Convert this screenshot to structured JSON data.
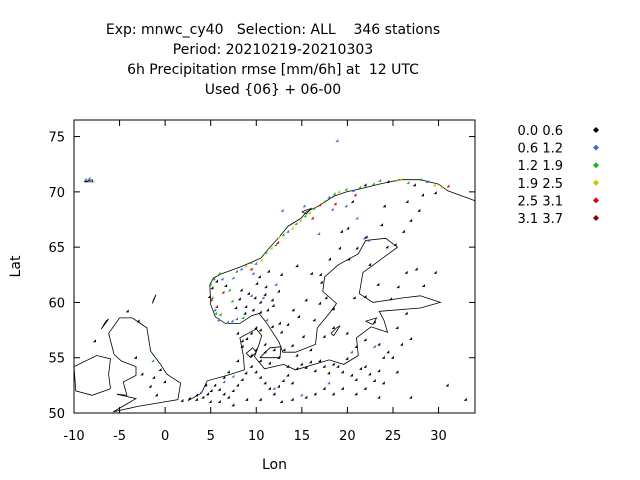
{
  "header": {
    "line1": "Exp: mnwc_cy40   Selection: ALL    346 stations",
    "line2": "Period: 20210219-20210303",
    "line3": "6h Precipitation rmse [mm/6h] at  12 UTC",
    "line4": "Used {06} + 06-00"
  },
  "chart_data": {
    "type": "scatter",
    "xlabel": "Lon",
    "ylabel": "Lat",
    "xlim": [
      -10,
      34
    ],
    "ylim": [
      50,
      76.5
    ],
    "x_ticks": [
      -10,
      -5,
      0,
      5,
      10,
      15,
      20,
      25,
      30
    ],
    "x_tick_labels": [
      "-10",
      "-5",
      "0",
      "5",
      "10",
      "15",
      "20",
      "25",
      "30"
    ],
    "y_ticks": [
      50,
      55,
      60,
      65,
      70,
      75
    ],
    "y_tick_labels": [
      "50",
      "55",
      "60",
      "65",
      "70",
      "75"
    ],
    "background_map": "coastlines",
    "legend_position": "right",
    "classes": [
      {
        "label": "0.0 0.6",
        "color": "#000000"
      },
      {
        "label": "0.6 1.2",
        "color": "#3a6fd8"
      },
      {
        "label": "1.2 1.9",
        "color": "#1fb01f"
      },
      {
        "label": "1.9 2.5",
        "color": "#c8c800"
      },
      {
        "label": "2.5 3.1",
        "color": "#e00000"
      },
      {
        "label": "3.1 3.7",
        "color": "#8b0000"
      }
    ],
    "points": [
      [
        -8.6,
        71.0,
        1
      ],
      [
        -8.2,
        71.1,
        1
      ],
      [
        19.0,
        74.5,
        1
      ],
      [
        -1.2,
        54.6,
        2
      ],
      [
        5.0,
        60.4,
        0
      ],
      [
        5.3,
        60.3,
        2
      ],
      [
        5.6,
        59.2,
        1
      ],
      [
        5.7,
        58.9,
        2
      ],
      [
        6.0,
        58.3,
        1
      ],
      [
        6.2,
        58.8,
        2
      ],
      [
        7.0,
        58.1,
        1
      ],
      [
        7.5,
        58.2,
        1
      ],
      [
        8.0,
        58.4,
        1
      ],
      [
        8.7,
        58.5,
        2
      ],
      [
        5.1,
        61.5,
        2
      ],
      [
        5.3,
        61.2,
        0
      ],
      [
        5.5,
        62.0,
        2
      ],
      [
        5.8,
        61.8,
        0
      ],
      [
        6.1,
        62.5,
        2
      ],
      [
        6.4,
        62.0,
        1
      ],
      [
        6.8,
        61.4,
        0
      ],
      [
        7.2,
        61.0,
        2
      ],
      [
        7.6,
        62.1,
        1
      ],
      [
        8.0,
        62.7,
        2
      ],
      [
        8.5,
        62.9,
        1
      ],
      [
        9.0,
        63.2,
        3
      ],
      [
        9.6,
        63.5,
        2
      ],
      [
        10.1,
        63.4,
        1
      ],
      [
        10.7,
        63.7,
        3
      ],
      [
        11.2,
        64.4,
        2
      ],
      [
        11.8,
        64.8,
        3
      ],
      [
        12.3,
        65.1,
        2
      ],
      [
        12.6,
        65.8,
        3
      ],
      [
        13.1,
        66.0,
        2
      ],
      [
        13.6,
        66.3,
        1
      ],
      [
        14.1,
        66.6,
        3
      ],
      [
        14.5,
        67.0,
        2
      ],
      [
        15.0,
        67.3,
        3
      ],
      [
        15.5,
        67.7,
        2
      ],
      [
        16.0,
        68.0,
        3
      ],
      [
        16.5,
        68.4,
        2
      ],
      [
        17.1,
        68.7,
        4
      ],
      [
        17.6,
        69.0,
        2
      ],
      [
        18.1,
        69.4,
        1
      ],
      [
        18.7,
        69.7,
        2
      ],
      [
        19.2,
        69.9,
        3
      ],
      [
        20.0,
        70.1,
        2
      ],
      [
        20.8,
        70.0,
        1
      ],
      [
        21.5,
        70.3,
        2
      ],
      [
        22.1,
        70.5,
        0
      ],
      [
        23.0,
        70.6,
        2
      ],
      [
        23.7,
        70.9,
        2
      ],
      [
        24.6,
        70.8,
        0
      ],
      [
        25.5,
        70.9,
        3
      ],
      [
        26.0,
        71.0,
        3
      ],
      [
        26.8,
        70.7,
        2
      ],
      [
        27.5,
        70.5,
        0
      ],
      [
        28.2,
        71.0,
        2
      ],
      [
        28.9,
        70.8,
        1
      ],
      [
        29.7,
        70.5,
        3
      ],
      [
        30.5,
        70.3,
        3
      ],
      [
        31.2,
        70.4,
        4
      ],
      [
        29.8,
        69.8,
        0
      ],
      [
        28.4,
        69.6,
        0
      ],
      [
        20.0,
        68.6,
        1
      ],
      [
        18.5,
        68.3,
        1
      ],
      [
        21.2,
        67.5,
        1
      ],
      [
        19.5,
        66.3,
        0
      ],
      [
        20.2,
        66.6,
        0
      ],
      [
        22.0,
        65.7,
        1
      ],
      [
        22.5,
        65.5,
        1
      ],
      [
        17.0,
        66.1,
        1
      ],
      [
        13.0,
        68.2,
        1
      ],
      [
        15.4,
        68.6,
        1
      ],
      [
        5.2,
        60.1,
        4
      ],
      [
        5.8,
        59.5,
        4
      ],
      [
        6.5,
        60.8,
        4
      ],
      [
        9.6,
        62.9,
        4
      ],
      [
        12.5,
        65.3,
        4
      ],
      [
        16.3,
        67.5,
        4
      ],
      [
        18.8,
        68.8,
        4
      ],
      [
        21.0,
        69.6,
        4
      ],
      [
        8.5,
        61.0,
        0
      ],
      [
        9.3,
        60.7,
        0
      ],
      [
        10.0,
        60.3,
        0
      ],
      [
        10.6,
        59.9,
        0
      ],
      [
        11.1,
        60.6,
        0
      ],
      [
        11.9,
        60.1,
        0
      ],
      [
        9.0,
        59.5,
        0
      ],
      [
        9.8,
        59.2,
        0
      ],
      [
        10.6,
        59.0,
        0
      ],
      [
        11.4,
        59.2,
        0
      ],
      [
        12.0,
        59.6,
        0
      ],
      [
        8.3,
        60.2,
        0
      ],
      [
        7.5,
        60.0,
        2
      ],
      [
        7.9,
        59.4,
        0
      ],
      [
        10.2,
        61.6,
        0
      ],
      [
        11.2,
        61.3,
        0
      ],
      [
        12.6,
        60.9,
        0
      ],
      [
        10.5,
        62.2,
        0
      ],
      [
        12.9,
        62.4,
        0
      ],
      [
        11.5,
        62.7,
        0
      ],
      [
        9.6,
        60.5,
        1
      ],
      [
        10.9,
        60.3,
        1
      ],
      [
        12.3,
        61.5,
        1
      ],
      [
        9.8,
        62.5,
        1
      ],
      [
        8.9,
        58.9,
        0
      ],
      [
        11.3,
        58.3,
        1
      ],
      [
        12.7,
        58.0,
        0
      ],
      [
        14.2,
        59.2,
        0
      ],
      [
        15.6,
        60.1,
        0
      ],
      [
        17.1,
        59.8,
        0
      ],
      [
        17.8,
        60.3,
        0
      ],
      [
        18.6,
        59.3,
        0
      ],
      [
        16.5,
        58.3,
        0
      ],
      [
        15.3,
        56.8,
        0
      ],
      [
        14.1,
        56.0,
        0
      ],
      [
        13.2,
        55.6,
        0
      ],
      [
        12.9,
        57.2,
        0
      ],
      [
        11.9,
        57.7,
        0
      ],
      [
        13.6,
        57.9,
        0
      ],
      [
        14.8,
        58.6,
        0
      ],
      [
        16.2,
        62.5,
        0
      ],
      [
        17.2,
        62.4,
        0
      ],
      [
        18.2,
        63.8,
        0
      ],
      [
        19.3,
        64.8,
        0
      ],
      [
        20.3,
        63.8,
        0
      ],
      [
        21.2,
        64.8,
        0
      ],
      [
        22.2,
        65.8,
        0
      ],
      [
        14.6,
        63.2,
        0
      ],
      [
        17.3,
        61.7,
        0
      ],
      [
        20.9,
        60.3,
        0
      ],
      [
        22.1,
        60.4,
        0
      ],
      [
        22.6,
        63.3,
        0
      ],
      [
        24.9,
        60.2,
        0
      ],
      [
        25.7,
        61.3,
        0
      ],
      [
        26.6,
        62.6,
        0
      ],
      [
        27.7,
        62.9,
        0
      ],
      [
        28.5,
        61.4,
        0
      ],
      [
        29.8,
        62.6,
        0
      ],
      [
        24.5,
        64.9,
        0
      ],
      [
        25.4,
        65.1,
        0
      ],
      [
        26.3,
        66.3,
        0
      ],
      [
        27.1,
        67.3,
        0
      ],
      [
        23.9,
        66.9,
        0
      ],
      [
        28.0,
        68.2,
        0
      ],
      [
        26.7,
        69.0,
        0
      ],
      [
        24.2,
        68.6,
        0
      ],
      [
        20.7,
        69.0,
        0
      ],
      [
        23.5,
        61.5,
        0
      ],
      [
        2.0,
        51.0,
        0
      ],
      [
        2.8,
        51.2,
        0
      ],
      [
        3.6,
        51.1,
        0
      ],
      [
        4.3,
        51.3,
        0
      ],
      [
        4.8,
        51.6,
        0
      ],
      [
        5.2,
        51.9,
        0
      ],
      [
        5.6,
        52.4,
        0
      ],
      [
        6.1,
        52.0,
        0
      ],
      [
        6.6,
        51.6,
        0
      ],
      [
        7.1,
        51.3,
        0
      ],
      [
        7.6,
        51.9,
        0
      ],
      [
        8.1,
        52.4,
        0
      ],
      [
        8.6,
        52.9,
        0
      ],
      [
        9.0,
        53.5,
        0
      ],
      [
        9.6,
        54.1,
        0
      ],
      [
        10.1,
        53.6,
        0
      ],
      [
        10.6,
        53.1,
        0
      ],
      [
        11.1,
        52.6,
        0
      ],
      [
        11.6,
        52.1,
        0
      ],
      [
        12.1,
        51.6,
        0
      ],
      [
        12.6,
        52.3,
        0
      ],
      [
        13.1,
        52.8,
        0
      ],
      [
        13.6,
        53.3,
        0
      ],
      [
        14.1,
        52.6,
        0
      ],
      [
        14.6,
        53.9,
        0
      ],
      [
        15.1,
        54.3,
        0
      ],
      [
        15.6,
        54.0,
        0
      ],
      [
        16.1,
        54.5,
        0
      ],
      [
        16.6,
        53.7,
        0
      ],
      [
        17.1,
        54.6,
        0
      ],
      [
        17.6,
        54.1,
        0
      ],
      [
        18.1,
        53.5,
        0
      ],
      [
        18.6,
        54.3,
        0
      ],
      [
        19.1,
        54.1,
        0
      ],
      [
        19.6,
        53.6,
        0
      ],
      [
        20.1,
        54.8,
        0
      ],
      [
        20.6,
        53.3,
        0
      ],
      [
        21.1,
        52.9,
        0
      ],
      [
        21.6,
        53.9,
        0
      ],
      [
        22.1,
        54.1,
        0
      ],
      [
        22.6,
        53.4,
        0
      ],
      [
        23.1,
        52.8,
        0
      ],
      [
        23.6,
        53.7,
        0
      ],
      [
        24.1,
        52.6,
        0
      ],
      [
        24.6,
        55.4,
        0
      ],
      [
        25.1,
        54.9,
        0
      ],
      [
        23.6,
        56.1,
        0
      ],
      [
        22.1,
        56.5,
        0
      ],
      [
        21.1,
        55.9,
        0
      ],
      [
        20.1,
        57.1,
        0
      ],
      [
        18.6,
        57.6,
        0
      ],
      [
        17.6,
        56.8,
        0
      ],
      [
        16.1,
        55.6,
        0
      ],
      [
        12.1,
        55.6,
        0
      ],
      [
        11.1,
        56.1,
        0
      ],
      [
        10.1,
        55.6,
        0
      ],
      [
        9.1,
        56.6,
        0
      ],
      [
        8.6,
        55.9,
        0
      ],
      [
        9.6,
        57.1,
        0
      ],
      [
        10.6,
        57.4,
        0
      ],
      [
        8.1,
        54.6,
        0
      ],
      [
        7.1,
        53.6,
        0
      ],
      [
        6.6,
        53.1,
        0
      ],
      [
        4.6,
        52.4,
        0
      ],
      [
        3.6,
        51.5,
        0
      ],
      [
        5.1,
        50.9,
        0
      ],
      [
        6.1,
        50.9,
        0
      ],
      [
        7.6,
        50.6,
        0
      ],
      [
        9.1,
        51.1,
        0
      ],
      [
        10.6,
        51.1,
        0
      ],
      [
        12.9,
        50.9,
        0
      ],
      [
        14.1,
        51.1,
        0
      ],
      [
        15.6,
        51.3,
        0
      ],
      [
        16.6,
        51.6,
        0
      ],
      [
        17.6,
        52.1,
        0
      ],
      [
        18.6,
        51.6,
        0
      ],
      [
        19.6,
        52.1,
        0
      ],
      [
        21.1,
        51.6,
        0
      ],
      [
        22.1,
        52.1,
        0
      ],
      [
        23.6,
        51.3,
        0
      ],
      [
        27.1,
        51.3,
        0
      ],
      [
        33.1,
        51.1,
        0
      ],
      [
        31.1,
        52.4,
        0
      ],
      [
        25.6,
        53.6,
        0
      ],
      [
        26.1,
        56.1,
        0
      ],
      [
        24.1,
        54.9,
        0
      ],
      [
        25.6,
        57.6,
        0
      ],
      [
        27.1,
        56.6,
        0
      ],
      [
        23.1,
        58.1,
        0
      ],
      [
        26.6,
        58.9,
        0
      ],
      [
        12.6,
        54.9,
        0
      ],
      [
        14.6,
        55.1,
        0
      ],
      [
        13.6,
        54.1,
        0
      ],
      [
        11.6,
        54.4,
        0
      ],
      [
        10.6,
        54.6,
        0
      ],
      [
        11.1,
        55.4,
        0
      ],
      [
        9.6,
        55.1,
        0
      ],
      [
        8.6,
        56.4,
        0
      ],
      [
        10.1,
        57.6,
        0
      ],
      [
        8.1,
        57.1,
        0
      ],
      [
        -0.8,
        51.5,
        0
      ],
      [
        -1.5,
        52.3,
        0
      ],
      [
        -1.1,
        53.1,
        0
      ],
      [
        -0.4,
        53.8,
        0
      ],
      [
        0.1,
        52.7,
        0
      ],
      [
        -2.4,
        53.4,
        0
      ],
      [
        -3.1,
        54.9,
        0
      ],
      [
        -4.0,
        59.1,
        0
      ],
      [
        -2.8,
        58.2,
        0
      ],
      [
        -7.6,
        56.4,
        0
      ],
      [
        6.6,
        52.7,
        1
      ],
      [
        12.1,
        52.1,
        1
      ],
      [
        15.1,
        51.5,
        1
      ],
      [
        18.1,
        52.6,
        1
      ],
      [
        20.6,
        55.4,
        1
      ],
      [
        23.1,
        55.9,
        1
      ],
      [
        7.6,
        53.2,
        1
      ],
      [
        4.1,
        51.8,
        1
      ]
    ]
  }
}
